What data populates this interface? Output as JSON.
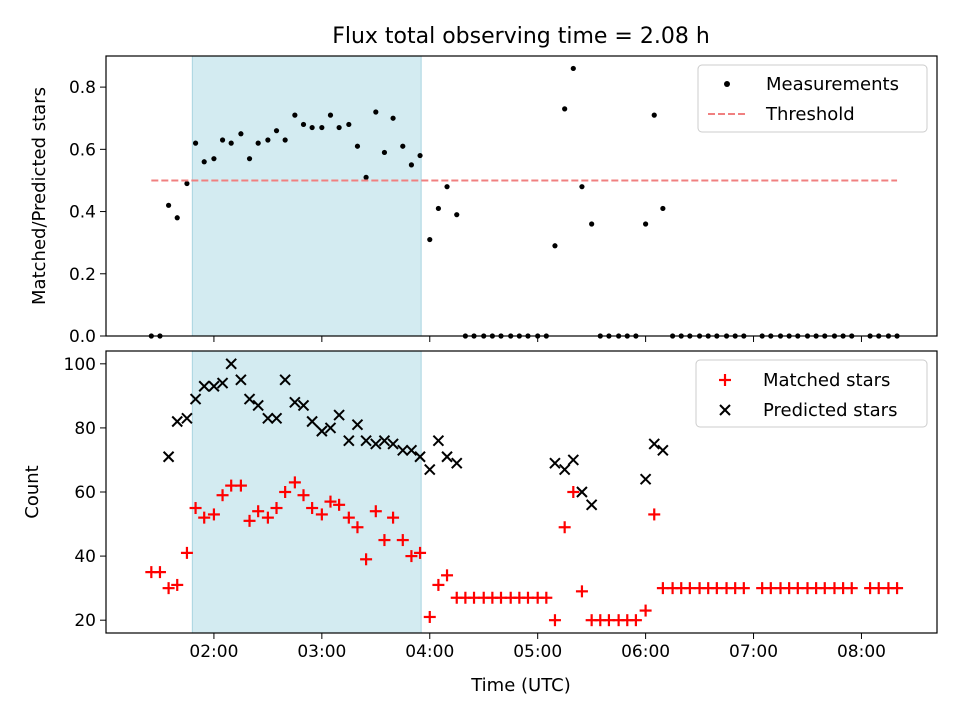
{
  "chart_data": [
    {
      "type": "scatter",
      "title": "Flux total observing time = 2.08 h",
      "xlabel": "",
      "ylabel": "Matched/Predicted stars",
      "ylim": [
        0,
        0.9
      ],
      "yticks": [
        0.0,
        0.2,
        0.4,
        0.6,
        0.8
      ],
      "ytick_labels": [
        "0.0",
        "0.2",
        "0.4",
        "0.6",
        "0.8"
      ],
      "x_unit": "hours UTC",
      "xlim": [
        1.0,
        8.7
      ],
      "shaded_interval": [
        1.8,
        3.92
      ],
      "shaded_color": "#d3ebf1",
      "legend_position": "top-right",
      "threshold": {
        "name": "Threshold",
        "value": 0.5,
        "x_range": [
          1.42,
          8.33
        ],
        "color": "#f08080"
      },
      "series": [
        {
          "name": "Measurements",
          "marker": "dot",
          "color": "#000000",
          "x": [
            1.42,
            1.5,
            1.58,
            1.66,
            1.75,
            1.83,
            1.91,
            2.0,
            2.08,
            2.16,
            2.25,
            2.33,
            2.41,
            2.5,
            2.58,
            2.66,
            2.75,
            2.83,
            2.91,
            3.0,
            3.08,
            3.16,
            3.25,
            3.33,
            3.41,
            3.5,
            3.58,
            3.66,
            3.75,
            3.83,
            3.91,
            4.0,
            4.08,
            4.16,
            4.25,
            4.33,
            4.41,
            4.5,
            4.58,
            4.66,
            4.75,
            4.83,
            4.91,
            5.0,
            5.08,
            5.16,
            5.25,
            5.33,
            5.41,
            5.5,
            5.58,
            5.66,
            5.75,
            5.83,
            5.91,
            6.0,
            6.08,
            6.16,
            6.25,
            6.33,
            6.41,
            6.5,
            6.58,
            6.66,
            6.75,
            6.83,
            6.91,
            7.08,
            7.16,
            7.25,
            7.33,
            7.41,
            7.5,
            7.58,
            7.66,
            7.75,
            7.83,
            7.91,
            8.08,
            8.16,
            8.25,
            8.33
          ],
          "y": [
            0,
            0,
            0.42,
            0.38,
            0.49,
            0.62,
            0.56,
            0.57,
            0.63,
            0.62,
            0.65,
            0.57,
            0.62,
            0.63,
            0.66,
            0.63,
            0.71,
            0.68,
            0.67,
            0.67,
            0.71,
            0.67,
            0.68,
            0.61,
            0.51,
            0.72,
            0.59,
            0.7,
            0.61,
            0.55,
            0.58,
            0.31,
            0.41,
            0.48,
            0.39,
            0,
            0,
            0,
            0,
            0,
            0,
            0,
            0,
            0,
            0,
            0.29,
            0.73,
            0.86,
            0.48,
            0.36,
            0,
            0,
            0,
            0,
            0,
            0.36,
            0.71,
            0.41,
            0,
            0,
            0,
            0,
            0,
            0,
            0,
            0,
            0,
            0,
            0,
            0,
            0,
            0,
            0,
            0,
            0,
            0,
            0,
            0,
            0,
            0,
            0,
            0
          ]
        }
      ]
    },
    {
      "type": "scatter",
      "title": "",
      "xlabel": "Time (UTC)",
      "ylabel": "Count",
      "ylim": [
        16,
        104
      ],
      "yticks": [
        20,
        40,
        60,
        80,
        100
      ],
      "ytick_labels": [
        "20",
        "40",
        "60",
        "80",
        "100"
      ],
      "x_unit": "hours UTC",
      "xlim": [
        1.0,
        8.7
      ],
      "xticks": [
        2,
        3,
        4,
        5,
        6,
        7,
        8
      ],
      "xtick_labels": [
        "02:00",
        "03:00",
        "04:00",
        "05:00",
        "06:00",
        "07:00",
        "08:00"
      ],
      "shaded_interval": [
        1.8,
        3.92
      ],
      "shaded_color": "#d3ebf1",
      "legend_position": "top-right",
      "series": [
        {
          "name": "Matched stars",
          "marker": "plus",
          "color": "#ff0000",
          "x": [
            1.42,
            1.5,
            1.58,
            1.66,
            1.75,
            1.83,
            1.91,
            2.0,
            2.08,
            2.16,
            2.25,
            2.33,
            2.41,
            2.5,
            2.58,
            2.66,
            2.75,
            2.83,
            2.91,
            3.0,
            3.08,
            3.16,
            3.25,
            3.33,
            3.41,
            3.5,
            3.58,
            3.66,
            3.75,
            3.83,
            3.91,
            4.0,
            4.08,
            4.16,
            4.25,
            4.33,
            4.41,
            4.5,
            4.58,
            4.66,
            4.75,
            4.83,
            4.91,
            5.0,
            5.08,
            5.16,
            5.25,
            5.33,
            5.41,
            5.5,
            5.58,
            5.66,
            5.75,
            5.83,
            5.91,
            6.0,
            6.08,
            6.16,
            6.25,
            6.33,
            6.41,
            6.5,
            6.58,
            6.66,
            6.75,
            6.83,
            6.91,
            7.08,
            7.16,
            7.25,
            7.33,
            7.41,
            7.5,
            7.58,
            7.66,
            7.75,
            7.83,
            7.91,
            8.08,
            8.16,
            8.25,
            8.33
          ],
          "y": [
            35,
            35,
            30,
            31,
            41,
            55,
            52,
            53,
            59,
            62,
            62,
            51,
            54,
            52,
            55,
            60,
            63,
            59,
            55,
            53,
            57,
            56,
            52,
            49,
            39,
            54,
            45,
            52,
            45,
            40,
            41,
            21,
            31,
            34,
            27,
            27,
            27,
            27,
            27,
            27,
            27,
            27,
            27,
            27,
            27,
            20,
            49,
            60,
            29,
            20,
            20,
            20,
            20,
            20,
            20,
            23,
            53,
            30,
            30,
            30,
            30,
            30,
            30,
            30,
            30,
            30,
            30,
            30,
            30,
            30,
            30,
            30,
            30,
            30,
            30,
            30,
            30,
            30,
            30,
            30,
            30,
            30
          ]
        },
        {
          "name": "Predicted stars",
          "marker": "x",
          "color": "#000000",
          "x": [
            1.58,
            1.66,
            1.75,
            1.83,
            1.91,
            2.0,
            2.08,
            2.16,
            2.25,
            2.33,
            2.41,
            2.5,
            2.58,
            2.66,
            2.75,
            2.83,
            2.91,
            3.0,
            3.08,
            3.16,
            3.25,
            3.33,
            3.41,
            3.5,
            3.58,
            3.66,
            3.75,
            3.83,
            3.91,
            4.0,
            4.08,
            4.16,
            4.25,
            5.16,
            5.25,
            5.33,
            5.41,
            5.5,
            6.0,
            6.08,
            6.16
          ],
          "y": [
            71,
            82,
            83,
            89,
            93,
            93,
            94,
            100,
            95,
            89,
            87,
            83,
            83,
            95,
            88,
            87,
            82,
            79,
            80,
            84,
            76,
            81,
            76,
            75,
            76,
            75,
            73,
            73,
            71,
            67,
            76,
            71,
            69,
            69,
            67,
            70,
            60,
            56,
            64,
            75,
            73
          ]
        }
      ]
    }
  ]
}
